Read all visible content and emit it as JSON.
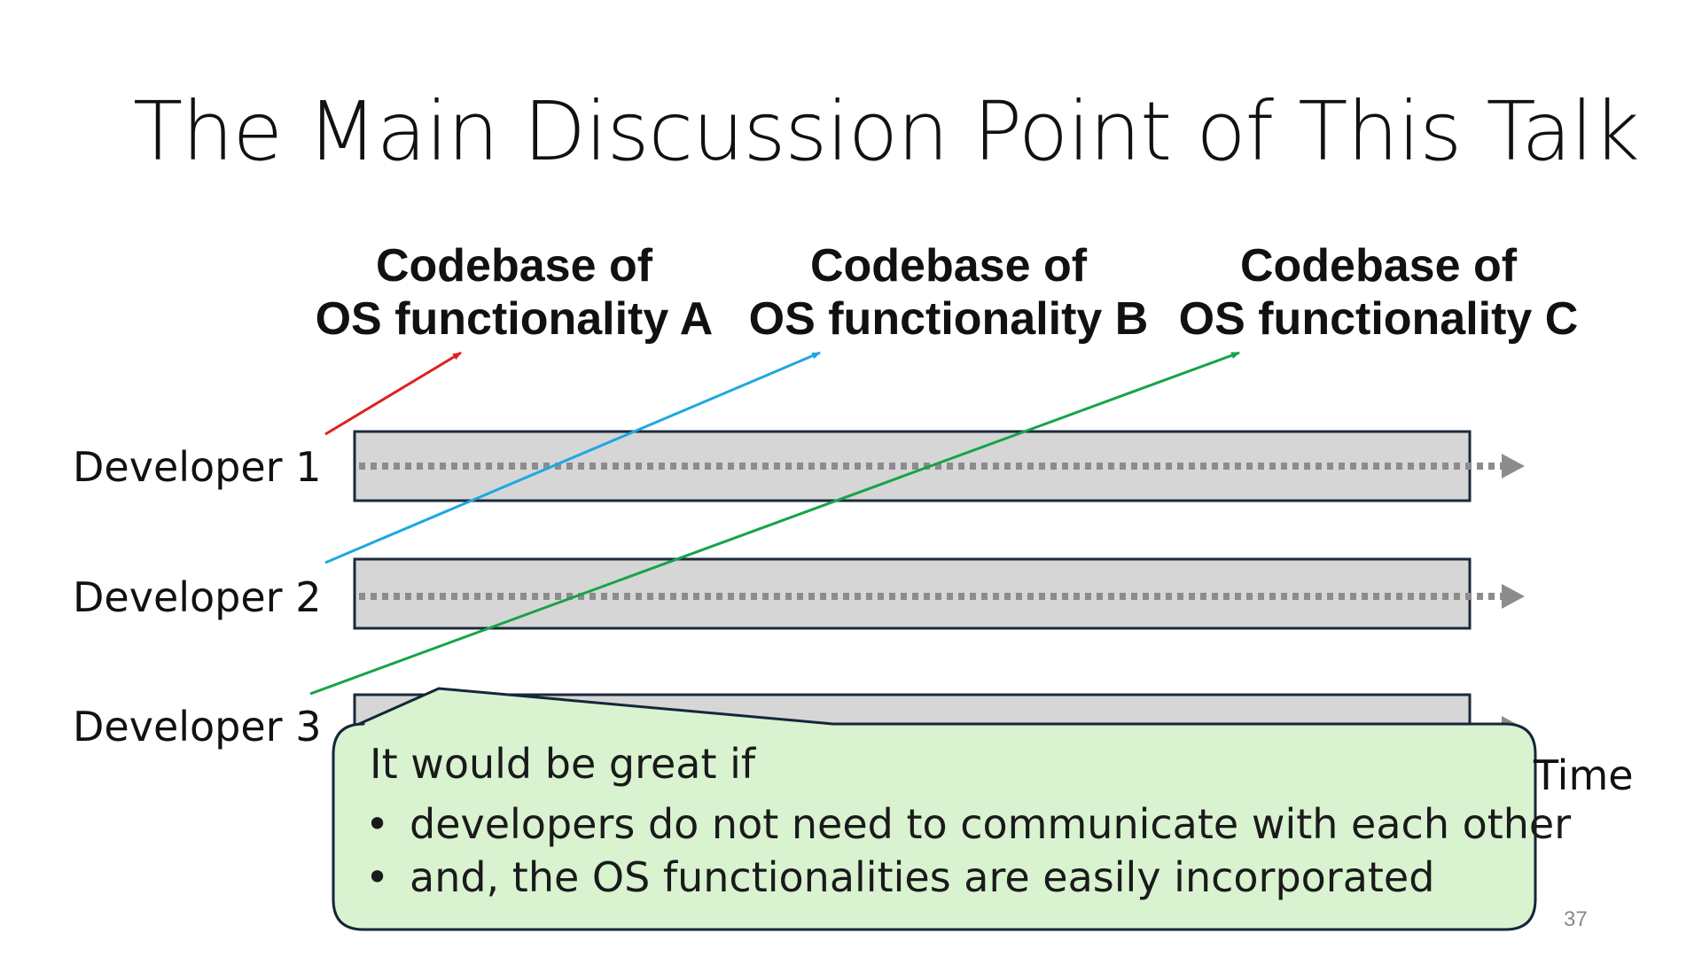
{
  "slide": {
    "title": "The Main Discussion Point of This Talk",
    "page_number": "37"
  },
  "codebases": [
    {
      "line1": "Codebase of",
      "line2": "OS functionality A",
      "arrow_color": "#e0201e"
    },
    {
      "line1": "Codebase of",
      "line2": "OS functionality B",
      "arrow_color": "#1ea8e0"
    },
    {
      "line1": "Codebase of",
      "line2": "OS functionality C",
      "arrow_color": "#16a34a"
    }
  ],
  "developers": [
    {
      "label": "Developer 1"
    },
    {
      "label": "Developer 2"
    },
    {
      "label": "Developer 3"
    }
  ],
  "time_axis": {
    "label": "Time"
  },
  "callout": {
    "heading": "It would be great if",
    "bullets": [
      "developers do not need to communicate with each other",
      "and, the OS functionalities are easily incorporated"
    ],
    "bullet_symbol": "•"
  },
  "colors": {
    "timeline_fill": "#d6d6d6",
    "timeline_border": "#1c2a3a",
    "dotted_line": "#8c8c8c",
    "callout_fill": "#d9f2d0",
    "callout_border": "#15263a"
  }
}
